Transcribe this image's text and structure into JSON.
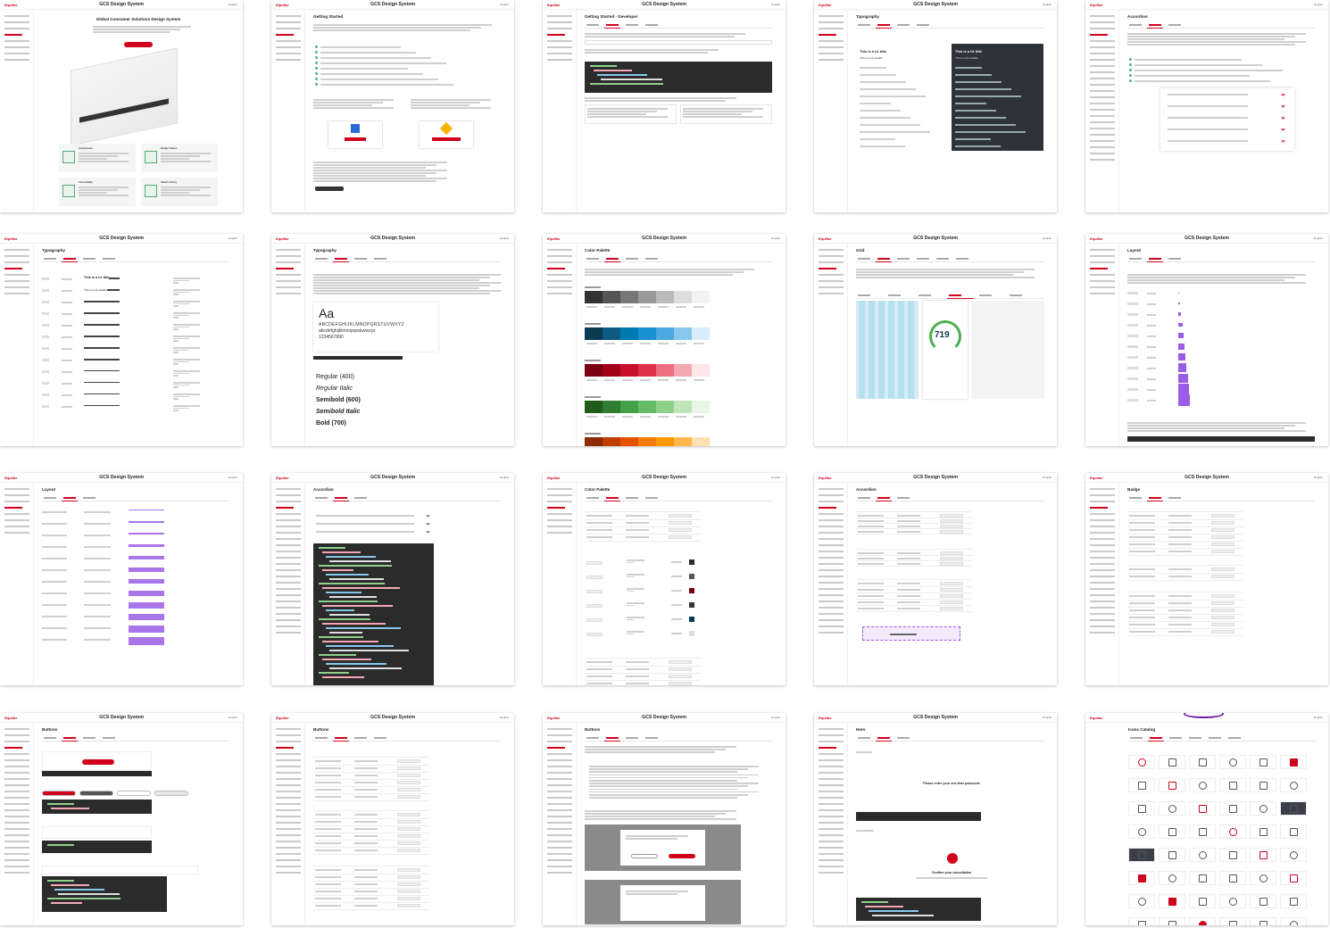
{
  "header": {
    "logo": "Equifax",
    "lang": "English"
  },
  "cards": [
    {
      "title": "GCS Design System",
      "page_title": "Global Consumer Solutions Design System",
      "layout": "home",
      "tabs": 0
    },
    {
      "title": "GCS Design System",
      "page_title": "Getting Started",
      "layout": "checklist",
      "tabs": 0
    },
    {
      "title": "GCS Design System",
      "page_title": "Getting Started - Developer",
      "layout": "code",
      "tabs": 4
    },
    {
      "title": "GCS Design System",
      "page_title": "Typography",
      "layout": "darkpanel",
      "tabs": 4
    },
    {
      "title": "",
      "page_title": "Accordion",
      "layout": "faq",
      "tabs": 3
    },
    {
      "title": "GCS Design System",
      "page_title": "Typography",
      "layout": "typetable",
      "tabs": 4
    },
    {
      "title": "GCS Design System",
      "page_title": "Typography",
      "layout": "typeface",
      "tabs": 4
    },
    {
      "title": "GCS Design System",
      "page_title": "Color Palette",
      "layout": "palette",
      "tabs": 4
    },
    {
      "title": "GCS Design System",
      "page_title": "Grid",
      "layout": "grid",
      "tabs": 6
    },
    {
      "title": "GCS Design System",
      "page_title": "Layout",
      "layout": "spacing",
      "tabs": 3
    },
    {
      "title": "GCS Design System",
      "page_title": "Layout",
      "layout": "margins",
      "tabs": 3
    },
    {
      "title": "GCS Design System",
      "page_title": "Accordion",
      "layout": "accordioncode",
      "tabs": 3
    },
    {
      "title": "GCS Design System",
      "page_title": "Color Palette",
      "layout": "colortable",
      "tabs": 4
    },
    {
      "title": "GCS Design System",
      "page_title": "Accordion",
      "layout": "specs",
      "tabs": 3
    },
    {
      "title": "GCS Design System",
      "page_title": "Badge",
      "layout": "badge",
      "tabs": 3
    },
    {
      "title": "GCS Design System",
      "page_title": "Buttons",
      "layout": "buttons",
      "tabs": 4
    },
    {
      "title": "GCS Design System",
      "page_title": "Buttons",
      "layout": "buttontable",
      "tabs": 4
    },
    {
      "title": "GCS Design System",
      "page_title": "Buttons",
      "layout": "modal",
      "tabs": 4
    },
    {
      "title": "GCS Design System",
      "page_title": "Hero",
      "layout": "hero",
      "tabs": 3
    },
    {
      "title": "",
      "page_title": "Icons Catalog",
      "layout": "icons",
      "tabs": 6
    }
  ],
  "text": {
    "home_sections": [
      "Components",
      "Design Tokens",
      "Accessibility",
      "Sketch Library"
    ],
    "h1_title": "This is a h1 title",
    "h1_subtitle": "This is a h1 subtitle",
    "typeface_sample": "Aa",
    "alphabet_upper": "ABCDEFGHIJKLMNOPQRSTUVWXYZ",
    "alphabet_lower": "abcdefghijklmnopqrstuvwxyz",
    "digits": "1234567890",
    "weights": [
      "Regular (400)",
      "Regular Italic",
      "Semibold (600)",
      "Semibold Italic",
      "Bold (700)"
    ],
    "score": "719",
    "passcode": "Please enter your one-time passcode",
    "confirm": "Confirm your cancellation"
  },
  "colors": {
    "brand": "#d0021b",
    "dark": "#2b2b2b",
    "gray": [
      "#333333",
      "#555555",
      "#777777",
      "#999999",
      "#bbbbbb",
      "#dddddd",
      "#f2f2f2"
    ],
    "blue": [
      "#0b3a53",
      "#0e5a82",
      "#0078b0",
      "#1a8fd1",
      "#4aa9e0",
      "#88c8ec",
      "#d6eefa"
    ],
    "red": [
      "#7a0012",
      "#a3001a",
      "#c8102e",
      "#e0324a",
      "#ec6f80",
      "#f4a8b3",
      "#fde6ea"
    ],
    "green": [
      "#1f5c1a",
      "#2e7d32",
      "#43a047",
      "#66bb6a",
      "#8fd18a",
      "#bde5b8",
      "#e8f6e6"
    ],
    "orange": [
      "#8a2b00",
      "#bf3d00",
      "#e65100",
      "#f57c00",
      "#ff9800",
      "#ffb74d",
      "#ffe0b2"
    ],
    "violet": "#9b5de5",
    "icon_red": "#d0021b"
  }
}
